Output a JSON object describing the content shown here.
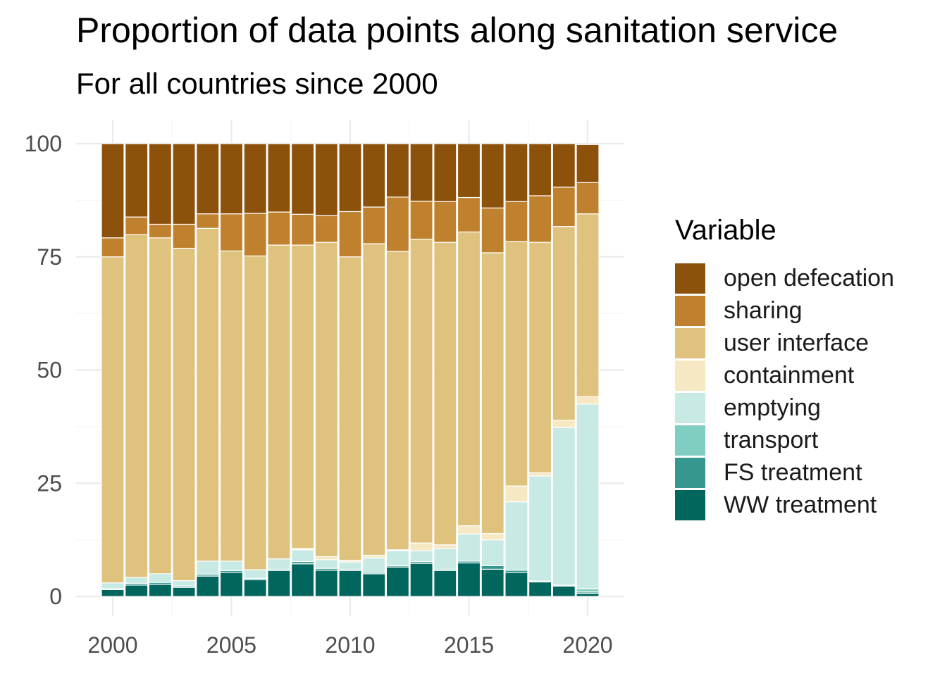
{
  "title": "Proportion of data points along sanitation service",
  "subtitle": "For all countries since 2000",
  "chart_data": {
    "type": "bar",
    "stacked": true,
    "x": [
      2000,
      2001,
      2002,
      2003,
      2004,
      2005,
      2006,
      2007,
      2008,
      2009,
      2010,
      2011,
      2012,
      2013,
      2014,
      2015,
      2016,
      2017,
      2018,
      2019,
      2020
    ],
    "x_ticks": [
      "2000",
      "2005",
      "2010",
      "2015",
      "2020"
    ],
    "y_ticks": [
      "0",
      "25",
      "50",
      "75",
      "100"
    ],
    "ylim": [
      0,
      100
    ],
    "xlabel": "",
    "ylabel": "",
    "grid": true,
    "legend_title": "Variable",
    "legend_position": "right",
    "series": [
      {
        "name": "WW treatment",
        "color": "#01665e",
        "values": [
          1.5,
          2.5,
          2.7,
          2.0,
          4.5,
          5.3,
          3.7,
          5.7,
          7.2,
          5.8,
          5.7,
          5.0,
          6.5,
          7.3,
          5.7,
          7.4,
          6.0,
          5.3,
          3.2,
          2.3,
          0.7
        ]
      },
      {
        "name": "FS treatment",
        "color": "#35978f",
        "values": [
          0.2,
          0.4,
          0.4,
          0.3,
          0.4,
          0.4,
          0.3,
          0.3,
          0.5,
          0.4,
          0.3,
          0.3,
          0.3,
          0.4,
          0.3,
          0.4,
          0.8,
          0.5,
          0.2,
          0.2,
          0.3
        ]
      },
      {
        "name": "transport",
        "color": "#80cdc1",
        "values": [
          0.0,
          0.0,
          0.0,
          0.0,
          0.0,
          0.0,
          0.0,
          0.0,
          0.0,
          0.0,
          0.0,
          0.0,
          0.0,
          0.0,
          0.0,
          0.0,
          0.0,
          0.0,
          0.0,
          0.0,
          0.7
        ]
      },
      {
        "name": "emptying",
        "color": "#c7eae5",
        "values": [
          1.3,
          1.3,
          1.9,
          1.2,
          2.9,
          2.1,
          1.9,
          2.3,
          2.6,
          1.9,
          1.6,
          3.2,
          3.3,
          2.4,
          4.6,
          6.0,
          5.7,
          15.1,
          23.2,
          34.8,
          40.8
        ]
      },
      {
        "name": "containment",
        "color": "#f6e8c3",
        "values": [
          0.0,
          0.0,
          0.0,
          0.0,
          0.0,
          0.0,
          0.0,
          0.0,
          0.3,
          0.7,
          0.4,
          0.6,
          0.2,
          1.7,
          0.8,
          1.8,
          1.4,
          3.5,
          0.7,
          1.6,
          1.6
        ]
      },
      {
        "name": "user interface",
        "color": "#dfc27d",
        "values": [
          72.0,
          75.7,
          74.2,
          73.4,
          73.5,
          68.5,
          69.3,
          69.3,
          67.0,
          69.4,
          67.0,
          68.8,
          65.9,
          67.1,
          66.8,
          64.9,
          62.0,
          54.0,
          50.9,
          42.8,
          40.4
        ]
      },
      {
        "name": "sharing",
        "color": "#bf812d",
        "values": [
          4.2,
          3.9,
          3.0,
          5.3,
          3.2,
          8.2,
          9.4,
          7.3,
          6.8,
          5.9,
          10.0,
          8.1,
          12.0,
          8.4,
          9.0,
          7.6,
          9.9,
          8.8,
          10.3,
          8.7,
          6.9
        ]
      },
      {
        "name": "open defecation",
        "color": "#8c510a",
        "values": [
          20.8,
          16.2,
          17.8,
          17.8,
          15.5,
          15.5,
          15.4,
          15.1,
          15.6,
          15.9,
          15.0,
          14.0,
          11.8,
          12.7,
          12.8,
          11.9,
          14.2,
          12.8,
          11.5,
          9.6,
          8.4
        ]
      }
    ]
  }
}
